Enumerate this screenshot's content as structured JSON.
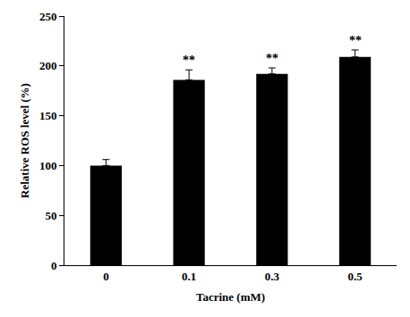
{
  "chart_data": {
    "type": "bar",
    "x_label": "Tacrine (mM)",
    "y_label": "Relative ROS level (%)",
    "categories": [
      "0",
      "0.1",
      "0.3",
      "0.5"
    ],
    "values": [
      100,
      186,
      192,
      209
    ],
    "errors": [
      6,
      10,
      6,
      7
    ],
    "color": "#000000",
    "ylim": [
      0,
      250
    ],
    "yticks": [
      0,
      50,
      100,
      150,
      200,
      250
    ],
    "grid": false,
    "annotations": [
      {
        "category": "0.1",
        "text": "**"
      },
      {
        "category": "0.3",
        "text": "**"
      },
      {
        "category": "0.5",
        "text": "**"
      }
    ]
  }
}
